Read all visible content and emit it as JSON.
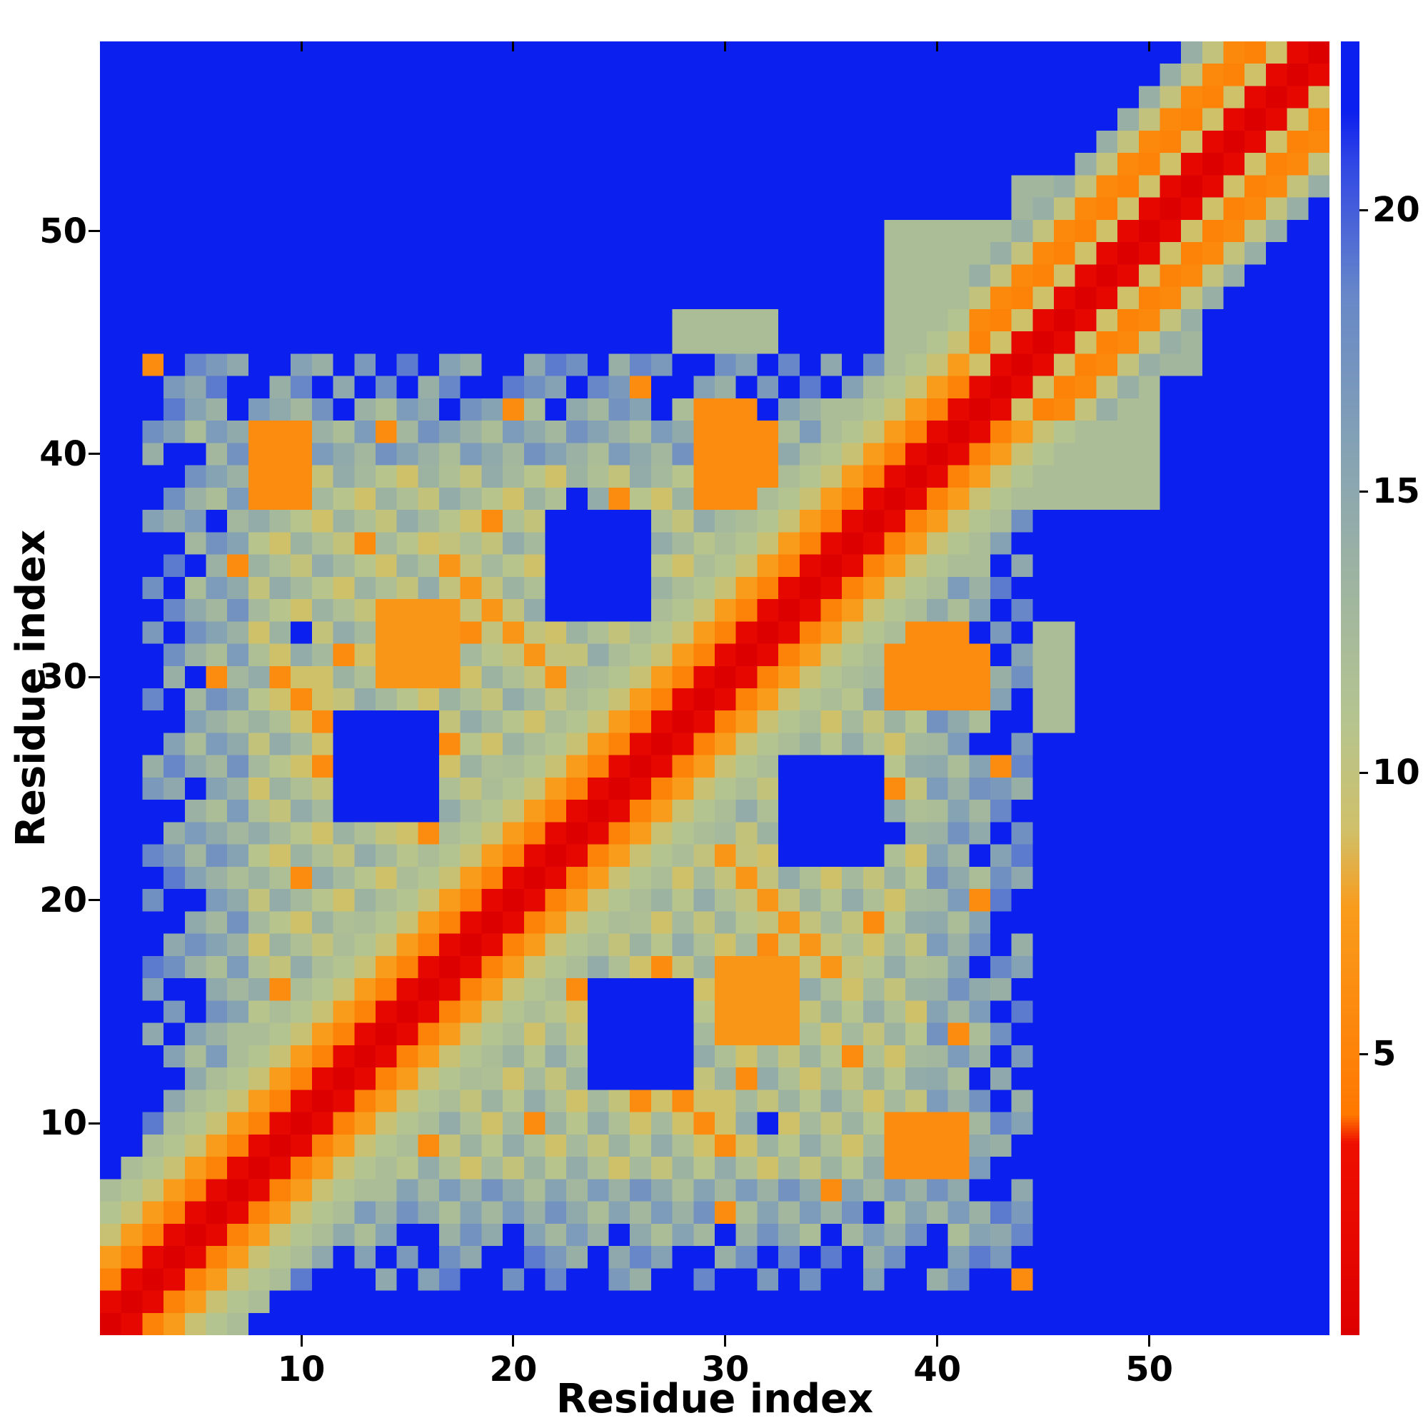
{
  "figure": {
    "background": "#ffffff"
  },
  "chart_data": {
    "type": "heatmap",
    "title": "",
    "xlabel": "Residue index",
    "ylabel": "Residue index",
    "x_ticks": [
      10,
      20,
      30,
      40,
      50
    ],
    "y_ticks": [
      10,
      20,
      30,
      40,
      50
    ],
    "colorbar_ticks": [
      5,
      10,
      15,
      20
    ],
    "n": 58,
    "axis_range": [
      1,
      58
    ],
    "value_range": [
      0,
      23
    ],
    "grid": false,
    "legend_position": "colorbar-right",
    "values_estimated": true,
    "colormap_stops": [
      [
        0.0,
        "#dd0000"
      ],
      [
        3.4,
        "#ef0f00"
      ],
      [
        3.9,
        "#ff7800"
      ],
      [
        7.6,
        "#f99c1c"
      ],
      [
        9.0,
        "#cfc06a"
      ],
      [
        11.0,
        "#b4c490"
      ],
      [
        13.5,
        "#9db3a2"
      ],
      [
        16.0,
        "#82a0b6"
      ],
      [
        18.5,
        "#6787c8"
      ],
      [
        20.8,
        "#3349e4"
      ],
      [
        21.8,
        "#0b1fee"
      ],
      [
        23.0,
        "#0b1fee"
      ]
    ],
    "matrix_spec": {
      "bg_value": 23,
      "band_profile": [
        0,
        1.5,
        5,
        7.5,
        9.5,
        11,
        12
      ],
      "tail_start": 42,
      "tail_band": [
        9,
        5,
        5.5,
        10,
        14
      ],
      "domain": [
        3,
        44
      ],
      "holes": [
        [
          12,
          16,
          24,
          28
        ],
        [
          22,
          26,
          33,
          37
        ]
      ],
      "hotspots": [
        [
          8,
          10,
          38,
          41,
          6
        ],
        [
          29,
          32,
          38,
          42,
          6
        ],
        [
          14,
          17,
          30,
          33,
          7
        ]
      ],
      "streaks": [
        [
          9,
          18,
          39,
          6
        ],
        [
          17,
          22,
          52,
          7
        ],
        [
          30,
          36,
          70,
          6
        ]
      ],
      "patches": [
        [
          38,
          43,
          44,
          50,
          12
        ],
        [
          28,
          32,
          44,
          46,
          12
        ],
        [
          44,
          46,
          47,
          52,
          13
        ]
      ]
    }
  }
}
